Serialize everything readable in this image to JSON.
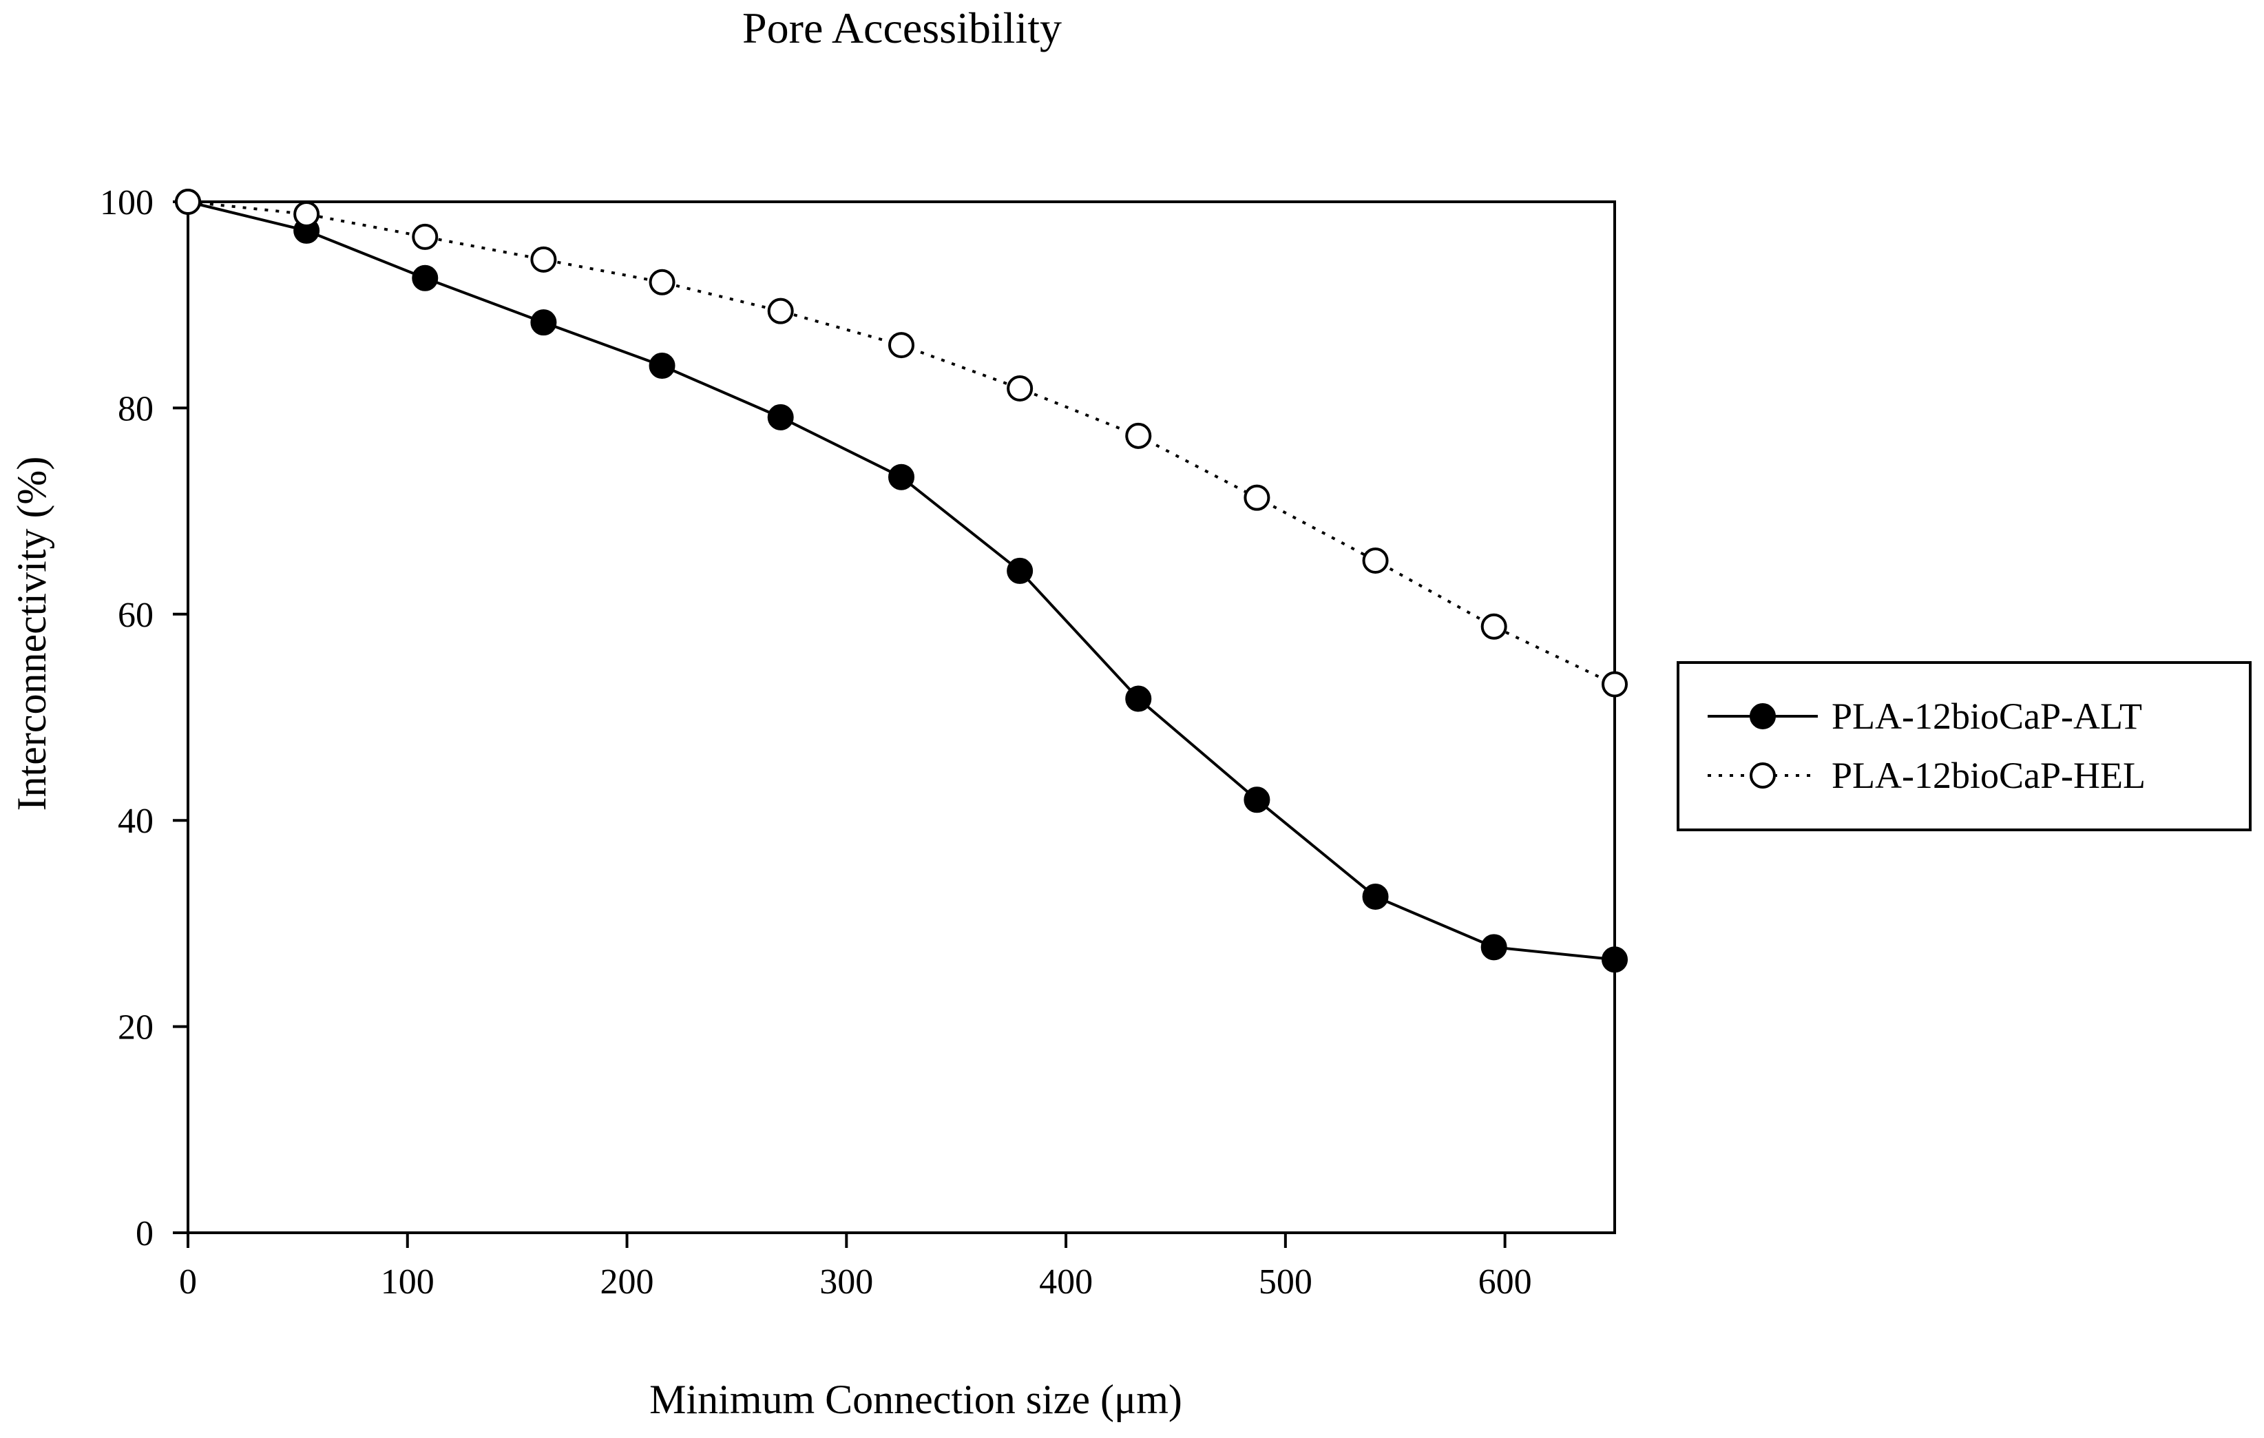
{
  "chart_data": {
    "type": "line",
    "title": "Pore Accessibility",
    "xlabel": "Minimum Connection size (μm)",
    "ylabel": "Interconnectivity (%)",
    "xlim": [
      0,
      650
    ],
    "ylim": [
      0,
      100
    ],
    "x_ticks": [
      0,
      100,
      200,
      300,
      400,
      500,
      600
    ],
    "y_ticks": [
      0,
      20,
      40,
      60,
      80,
      100
    ],
    "x_tick_labels": [
      "0",
      "100",
      "200",
      "300",
      "400",
      "500",
      "600"
    ],
    "y_tick_labels": [
      "0",
      "20",
      "40",
      "60",
      "80",
      "100"
    ],
    "grid": false,
    "legend_position": "right",
    "x": [
      0,
      54,
      108,
      162,
      216,
      270,
      325,
      379,
      433,
      487,
      541,
      595,
      650
    ],
    "series": [
      {
        "name": "PLA-12bioCaP-ALT",
        "line_style": "solid",
        "marker": "filled-circle",
        "values": [
          100,
          97.2,
          92.6,
          88.3,
          84.1,
          79.1,
          73.3,
          64.2,
          51.8,
          42.0,
          32.6,
          27.7,
          26.5
        ]
      },
      {
        "name": "PLA-12bioCaP-HEL",
        "line_style": "dotted",
        "marker": "open-circle",
        "values": [
          100,
          98.8,
          96.6,
          94.4,
          92.2,
          89.4,
          86.1,
          81.9,
          77.3,
          71.3,
          65.2,
          58.8,
          53.2
        ]
      }
    ]
  }
}
